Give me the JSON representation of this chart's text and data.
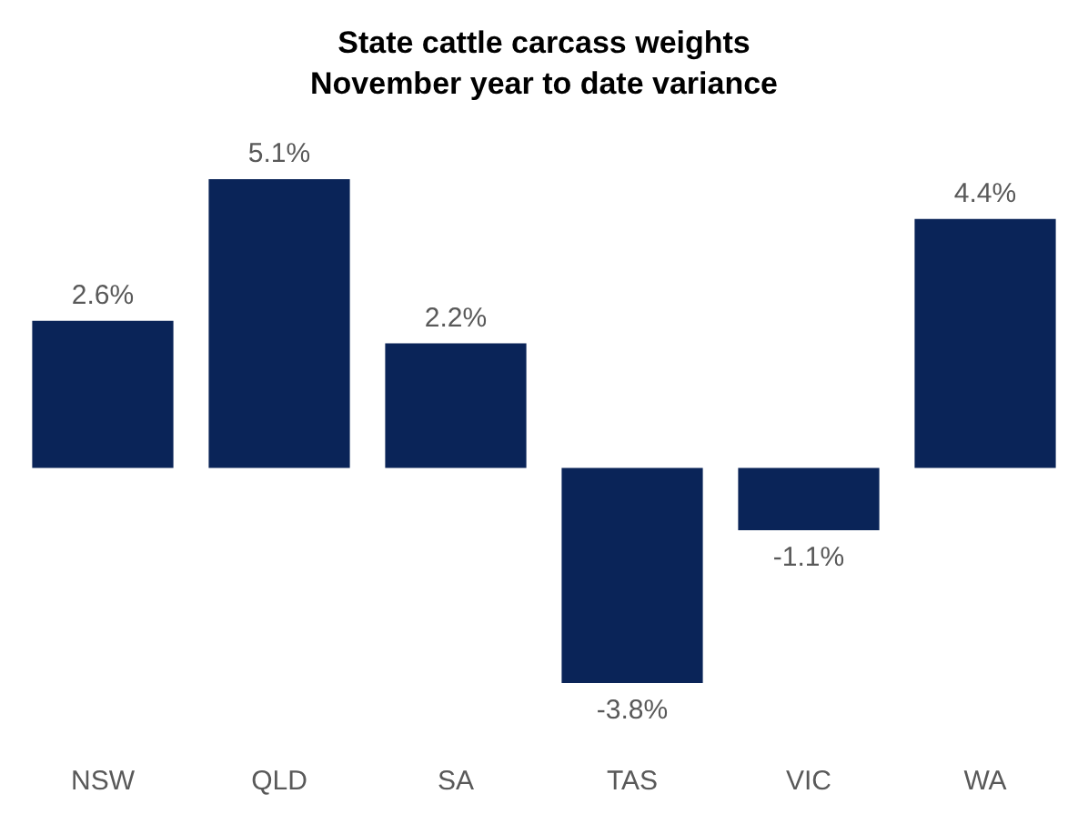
{
  "chart_data": {
    "type": "bar",
    "title": "State cattle carcass weights",
    "subtitle": "November year to date variance",
    "categories": [
      "NSW",
      "QLD",
      "SA",
      "TAS",
      "VIC",
      "WA"
    ],
    "values": [
      2.6,
      5.1,
      2.2,
      -3.8,
      -1.1,
      4.4
    ],
    "value_labels": [
      "2.6%",
      "5.1%",
      "2.2%",
      "-3.8%",
      "-1.1%",
      "4.4%"
    ],
    "color": "#0a2458",
    "grid": false,
    "legend": false
  }
}
